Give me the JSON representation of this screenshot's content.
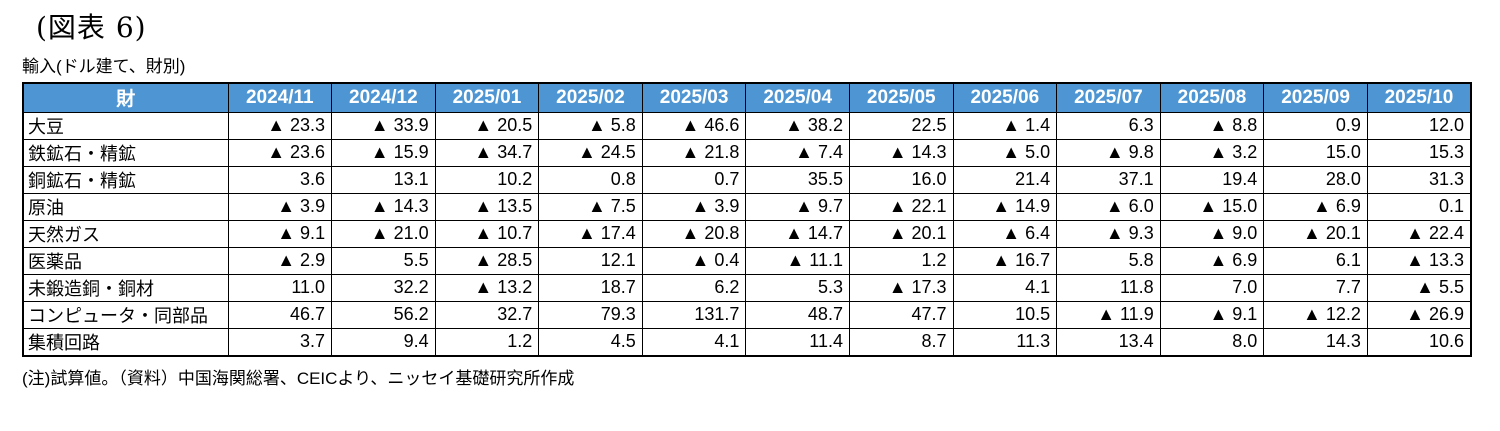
{
  "page": {
    "title": "(図表 6)",
    "subtitle": "輸入(ドル建て、財別)",
    "note": "(注)試算値。（資料）中国海関総署、CEICより、ニッセイ基礎研究所作成"
  },
  "colors": {
    "header_bg": "#4E96D3",
    "header_text": "#FFFFFF",
    "border": "#000000"
  },
  "chart_data": {
    "type": "table",
    "title": "輸入(ドル建て、財別)",
    "row_header": "財",
    "negative_marker": "▲",
    "columns": [
      "2024/11",
      "2024/12",
      "2025/01",
      "2025/02",
      "2025/03",
      "2025/04",
      "2025/05",
      "2025/06",
      "2025/07",
      "2025/08",
      "2025/09",
      "2025/10"
    ],
    "rows": [
      {
        "label": "大豆",
        "values": [
          -23.3,
          -33.9,
          -20.5,
          -5.8,
          -46.6,
          -38.2,
          22.5,
          -1.4,
          6.3,
          -8.8,
          0.9,
          12.0
        ]
      },
      {
        "label": "鉄鉱石・精鉱",
        "values": [
          -23.6,
          -15.9,
          -34.7,
          -24.5,
          -21.8,
          -7.4,
          -14.3,
          -5.0,
          -9.8,
          -3.2,
          15.0,
          15.3
        ]
      },
      {
        "label": "銅鉱石・精鉱",
        "values": [
          3.6,
          13.1,
          10.2,
          0.8,
          0.7,
          35.5,
          16.0,
          21.4,
          37.1,
          19.4,
          28.0,
          31.3
        ]
      },
      {
        "label": "原油",
        "values": [
          -3.9,
          -14.3,
          -13.5,
          -7.5,
          -3.9,
          -9.7,
          -22.1,
          -14.9,
          -6.0,
          -15.0,
          -6.9,
          0.1
        ]
      },
      {
        "label": "天然ガス",
        "values": [
          -9.1,
          -21.0,
          -10.7,
          -17.4,
          -20.8,
          -14.7,
          -20.1,
          -6.4,
          -9.3,
          -9.0,
          -20.1,
          -22.4
        ]
      },
      {
        "label": "医薬品",
        "values": [
          -2.9,
          5.5,
          -28.5,
          12.1,
          -0.4,
          -11.1,
          1.2,
          -16.7,
          5.8,
          -6.9,
          6.1,
          -13.3
        ]
      },
      {
        "label": "未鍛造銅・銅材",
        "values": [
          11.0,
          32.2,
          -13.2,
          18.7,
          6.2,
          5.3,
          -17.3,
          4.1,
          11.8,
          7.0,
          7.7,
          -5.5
        ]
      },
      {
        "label": "コンピュータ・同部品",
        "values": [
          46.7,
          56.2,
          32.7,
          79.3,
          131.7,
          48.7,
          47.7,
          10.5,
          -11.9,
          -9.1,
          -12.2,
          -26.9
        ]
      },
      {
        "label": "集積回路",
        "values": [
          3.7,
          9.4,
          1.2,
          4.5,
          4.1,
          11.4,
          8.7,
          11.3,
          13.4,
          8.0,
          14.3,
          10.6
        ]
      }
    ]
  }
}
